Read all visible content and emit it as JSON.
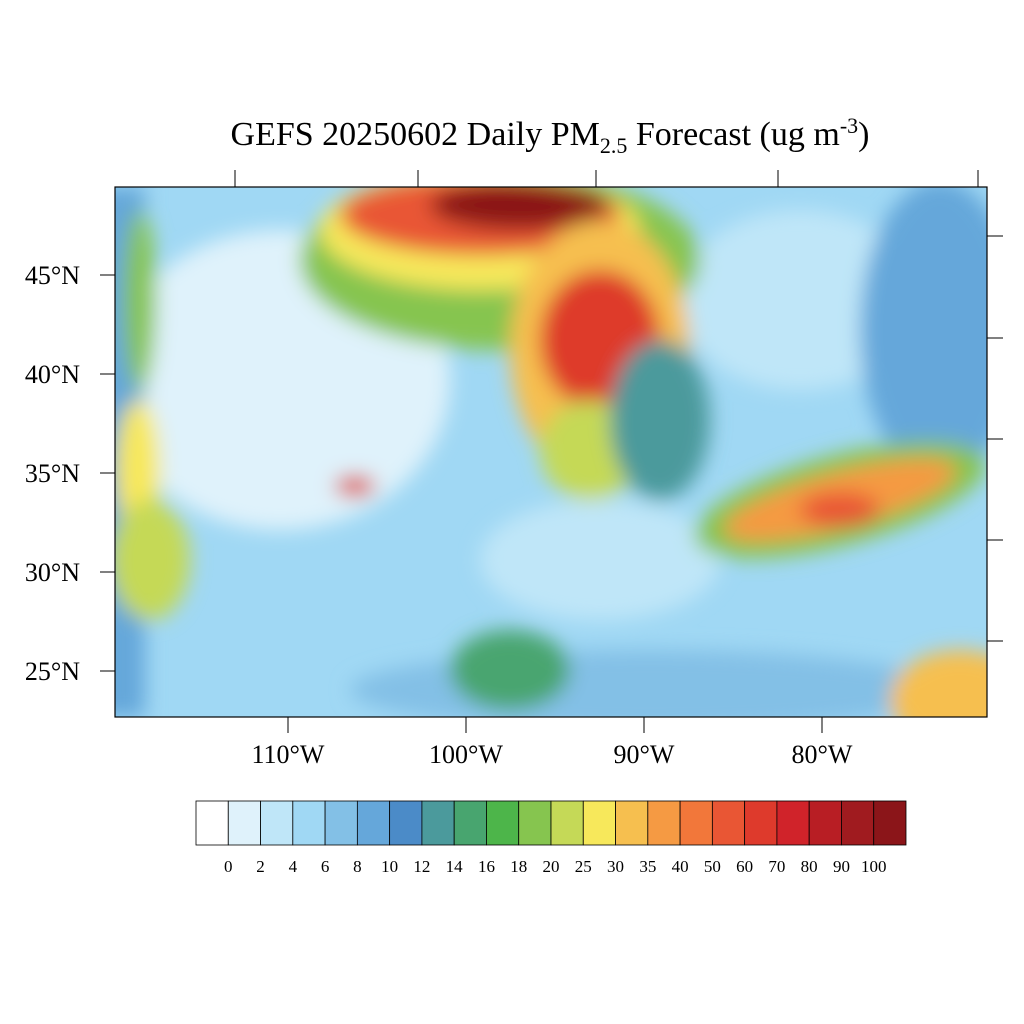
{
  "title": {
    "main": "GEFS 20250602 Daily PM",
    "sub": "2.5",
    "rest": " Forecast (ug m",
    "sup": "-3",
    "end": ")"
  },
  "lat_ticks": [
    {
      "value": 45,
      "label": "45°N"
    },
    {
      "value": 40,
      "label": "40°N"
    },
    {
      "value": 35,
      "label": "35°N"
    },
    {
      "value": 30,
      "label": "30°N"
    },
    {
      "value": 25,
      "label": "25°N"
    }
  ],
  "lon_ticks": [
    {
      "value": 110,
      "label": "110°W"
    },
    {
      "value": 100,
      "label": "100°W"
    },
    {
      "value": 90,
      "label": "90°W"
    },
    {
      "value": 80,
      "label": "80°W"
    }
  ],
  "colorbar": {
    "colors": [
      "#ffffff",
      "#dff2fb",
      "#bfe6f8",
      "#a0d8f4",
      "#83c0e6",
      "#65a7da",
      "#4b8bc8",
      "#4b9a9c",
      "#48a56f",
      "#4db54a",
      "#86c54f",
      "#c5d957",
      "#f7e85b",
      "#f6bf4f",
      "#f59a43",
      "#f2773a",
      "#e95634",
      "#de3a2c",
      "#d0232a",
      "#b81e24",
      "#a01b1f",
      "#8b1519"
    ],
    "labels": [
      0,
      2,
      4,
      6,
      8,
      10,
      12,
      14,
      16,
      18,
      20,
      25,
      30,
      35,
      40,
      50,
      60,
      70,
      80,
      90,
      100
    ]
  }
}
